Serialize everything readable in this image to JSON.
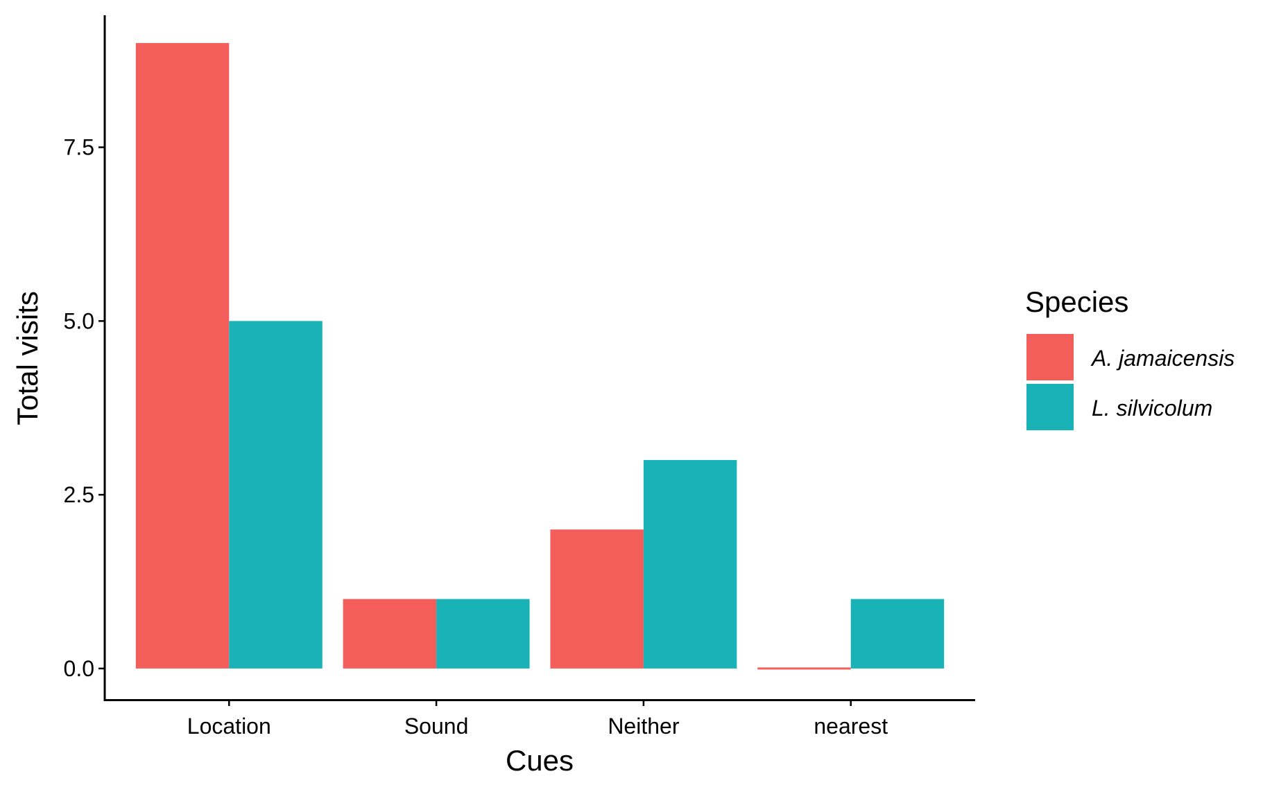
{
  "chart_data": {
    "type": "bar",
    "title": "",
    "xlabel": "Cues",
    "ylabel": "Total visits",
    "categories": [
      "Location",
      "Sound",
      "Neither",
      "nearest"
    ],
    "series": [
      {
        "name": "A. jamaicensis",
        "values": [
          9,
          1,
          2,
          0
        ],
        "color": "#F35E5A"
      },
      {
        "name": "L. silvicolum",
        "values": [
          5,
          1,
          3,
          1
        ],
        "color": "#19B3B7"
      }
    ],
    "ylim": [
      -0.45,
      9.4
    ],
    "yticks": [
      0.0,
      2.5,
      5.0,
      7.5
    ],
    "ytick_labels": [
      "0.0",
      "2.5",
      "5.0",
      "7.5"
    ],
    "legend": {
      "title": "Species",
      "placement": "right"
    },
    "grid": false
  }
}
